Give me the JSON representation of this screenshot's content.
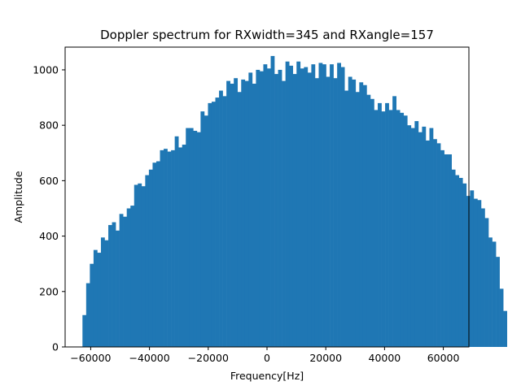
{
  "chart_data": {
    "type": "bar",
    "title": "Doppler spectrum for RXwidth=345 and RXangle=157",
    "xlabel": "Frequency[Hz]",
    "ylabel": "Amplitude",
    "xlim": [
      -68700,
      68700
    ],
    "ylim": [
      0,
      1082
    ],
    "bin_start": -62800,
    "bin_width": 1256,
    "x_ticks": [
      -60000,
      -40000,
      -20000,
      0,
      20000,
      40000,
      60000
    ],
    "x_tick_labels": [
      "−60000",
      "−40000",
      "−20000",
      "0",
      "20000",
      "40000",
      "60000"
    ],
    "y_ticks": [
      0,
      200,
      400,
      600,
      800,
      1000
    ],
    "y_tick_labels": [
      "0",
      "200",
      "400",
      "600",
      "800",
      "1000"
    ],
    "bar_color": "#1f77b4",
    "values": [
      115,
      230,
      300,
      350,
      340,
      395,
      385,
      440,
      450,
      420,
      480,
      470,
      500,
      510,
      585,
      590,
      580,
      620,
      640,
      665,
      670,
      710,
      715,
      705,
      710,
      760,
      720,
      730,
      790,
      790,
      780,
      775,
      850,
      835,
      880,
      885,
      900,
      925,
      905,
      960,
      950,
      970,
      920,
      965,
      960,
      990,
      950,
      1000,
      995,
      1020,
      1005,
      1050,
      985,
      1000,
      960,
      1030,
      1015,
      985,
      1030,
      1005,
      1010,
      990,
      1020,
      970,
      1025,
      1020,
      975,
      1020,
      970,
      1025,
      1010,
      925,
      975,
      965,
      920,
      955,
      945,
      910,
      895,
      855,
      880,
      850,
      880,
      855,
      905,
      855,
      845,
      835,
      800,
      790,
      815,
      775,
      795,
      745,
      790,
      750,
      735,
      710,
      695,
      695,
      640,
      620,
      610,
      590,
      545,
      565,
      535,
      530,
      500,
      465,
      395,
      380,
      325,
      210,
      130
    ],
    "grid": false,
    "legend": "none"
  }
}
